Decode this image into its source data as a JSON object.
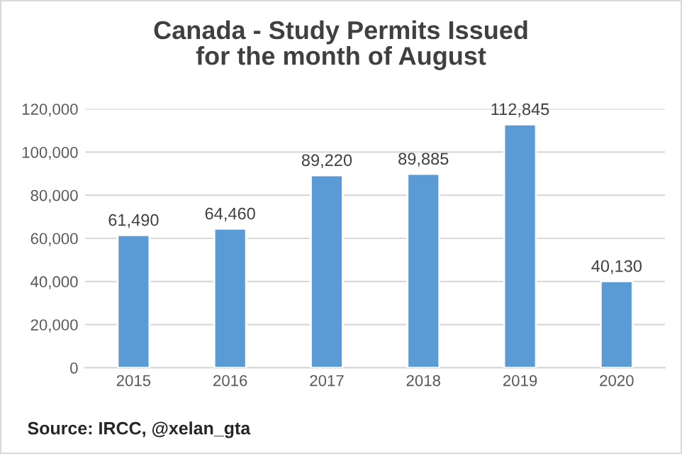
{
  "chart_data": {
    "type": "bar",
    "title": "Canada - Study Permits Issued\nfor the month of August",
    "categories": [
      "2015",
      "2016",
      "2017",
      "2018",
      "2019",
      "2020"
    ],
    "values": [
      61490,
      64460,
      89220,
      89885,
      112845,
      40130
    ],
    "value_labels": [
      "61,490",
      "64,460",
      "89,220",
      "89,885",
      "112,845",
      "40,130"
    ],
    "color": "#5b9bd5",
    "ylim": [
      0,
      120000
    ],
    "yticks": [
      0,
      {
        "value": 20000,
        "label": "20,000"
      },
      {
        "value": 40000,
        "label": "40,000"
      },
      {
        "value": 60000,
        "label": "60,000"
      },
      {
        "value": 80000,
        "label": "80,000"
      },
      {
        "value": 100000,
        "label": "100,000"
      },
      {
        "value": 120000,
        "label": "120,000"
      }
    ],
    "grid": "y",
    "annotations": [
      "Source: IRCC, @xelan_gta"
    ]
  }
}
